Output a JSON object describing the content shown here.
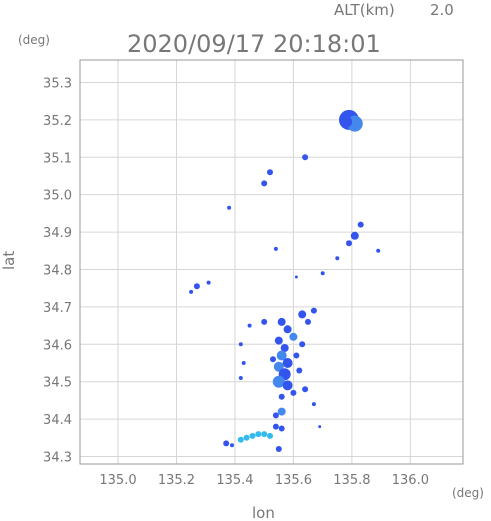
{
  "header": {
    "alt_label": "ALT(km)",
    "alt_value": "2.0",
    "timestamp": "2020/09/17 20:18:01"
  },
  "chart_data": {
    "type": "scatter",
    "xlabel": "lon",
    "ylabel": "lat",
    "x_unit": "(deg)",
    "y_unit": "(deg)",
    "xlim": [
      134.87,
      136.18
    ],
    "ylim": [
      34.28,
      35.36
    ],
    "x_ticks": [
      "135.0",
      "135.2",
      "135.4",
      "135.6",
      "135.8",
      "136.0"
    ],
    "y_ticks": [
      "34.3",
      "34.4",
      "34.5",
      "34.6",
      "34.7",
      "34.8",
      "34.9",
      "35.0",
      "35.1",
      "35.2",
      "35.3"
    ],
    "grid": true,
    "colors": {
      "blue": "#3355ee",
      "mid": "#4488ee",
      "cyan": "#33bbee"
    },
    "points": [
      {
        "x": 135.79,
        "y": 35.2,
        "c": "blue",
        "s": 10
      },
      {
        "x": 135.81,
        "y": 35.19,
        "c": "mid",
        "s": 8
      },
      {
        "x": 135.78,
        "y": 35.195,
        "c": "blue",
        "s": 6
      },
      {
        "x": 135.64,
        "y": 35.1,
        "c": "blue",
        "s": 3
      },
      {
        "x": 135.52,
        "y": 35.06,
        "c": "blue",
        "s": 3
      },
      {
        "x": 135.5,
        "y": 35.03,
        "c": "blue",
        "s": 3
      },
      {
        "x": 135.38,
        "y": 34.965,
        "c": "blue",
        "s": 2
      },
      {
        "x": 135.83,
        "y": 34.92,
        "c": "blue",
        "s": 3
      },
      {
        "x": 135.81,
        "y": 34.89,
        "c": "blue",
        "s": 4
      },
      {
        "x": 135.79,
        "y": 34.87,
        "c": "blue",
        "s": 3
      },
      {
        "x": 135.75,
        "y": 34.83,
        "c": "blue",
        "s": 2
      },
      {
        "x": 135.89,
        "y": 34.85,
        "c": "blue",
        "s": 2
      },
      {
        "x": 135.54,
        "y": 34.855,
        "c": "blue",
        "s": 2
      },
      {
        "x": 135.7,
        "y": 34.79,
        "c": "blue",
        "s": 2
      },
      {
        "x": 135.61,
        "y": 34.78,
        "c": "blue",
        "s": 1.5
      },
      {
        "x": 135.27,
        "y": 34.755,
        "c": "blue",
        "s": 3
      },
      {
        "x": 135.25,
        "y": 34.74,
        "c": "blue",
        "s": 2
      },
      {
        "x": 135.31,
        "y": 34.765,
        "c": "blue",
        "s": 2
      },
      {
        "x": 135.56,
        "y": 34.66,
        "c": "blue",
        "s": 4
      },
      {
        "x": 135.58,
        "y": 34.64,
        "c": "blue",
        "s": 4
      },
      {
        "x": 135.6,
        "y": 34.62,
        "c": "mid",
        "s": 4
      },
      {
        "x": 135.55,
        "y": 34.61,
        "c": "blue",
        "s": 4
      },
      {
        "x": 135.63,
        "y": 34.68,
        "c": "blue",
        "s": 4
      },
      {
        "x": 135.65,
        "y": 34.66,
        "c": "blue",
        "s": 3
      },
      {
        "x": 135.5,
        "y": 34.66,
        "c": "blue",
        "s": 3
      },
      {
        "x": 135.45,
        "y": 34.65,
        "c": "blue",
        "s": 2
      },
      {
        "x": 135.67,
        "y": 34.69,
        "c": "blue",
        "s": 3
      },
      {
        "x": 135.57,
        "y": 34.59,
        "c": "blue",
        "s": 4
      },
      {
        "x": 135.56,
        "y": 34.57,
        "c": "mid",
        "s": 5
      },
      {
        "x": 135.58,
        "y": 34.55,
        "c": "blue",
        "s": 5
      },
      {
        "x": 135.55,
        "y": 34.54,
        "c": "mid",
        "s": 5
      },
      {
        "x": 135.57,
        "y": 34.52,
        "c": "blue",
        "s": 6
      },
      {
        "x": 135.55,
        "y": 34.5,
        "c": "mid",
        "s": 6
      },
      {
        "x": 135.58,
        "y": 34.49,
        "c": "blue",
        "s": 5
      },
      {
        "x": 135.53,
        "y": 34.56,
        "c": "blue",
        "s": 3
      },
      {
        "x": 135.61,
        "y": 34.57,
        "c": "blue",
        "s": 3
      },
      {
        "x": 135.62,
        "y": 34.53,
        "c": "blue",
        "s": 3
      },
      {
        "x": 135.63,
        "y": 34.6,
        "c": "blue",
        "s": 3
      },
      {
        "x": 135.42,
        "y": 34.6,
        "c": "blue",
        "s": 2
      },
      {
        "x": 135.43,
        "y": 34.55,
        "c": "blue",
        "s": 2
      },
      {
        "x": 135.42,
        "y": 34.51,
        "c": "blue",
        "s": 2
      },
      {
        "x": 135.6,
        "y": 34.47,
        "c": "blue",
        "s": 3
      },
      {
        "x": 135.64,
        "y": 34.48,
        "c": "blue",
        "s": 3
      },
      {
        "x": 135.56,
        "y": 34.46,
        "c": "blue",
        "s": 3
      },
      {
        "x": 135.67,
        "y": 34.44,
        "c": "blue",
        "s": 2
      },
      {
        "x": 135.56,
        "y": 34.42,
        "c": "mid",
        "s": 4
      },
      {
        "x": 135.54,
        "y": 34.41,
        "c": "blue",
        "s": 3
      },
      {
        "x": 135.54,
        "y": 34.38,
        "c": "blue",
        "s": 3
      },
      {
        "x": 135.56,
        "y": 34.375,
        "c": "blue",
        "s": 3
      },
      {
        "x": 135.69,
        "y": 34.38,
        "c": "blue",
        "s": 1.5
      },
      {
        "x": 135.44,
        "y": 34.35,
        "c": "cyan",
        "s": 3
      },
      {
        "x": 135.46,
        "y": 34.355,
        "c": "cyan",
        "s": 3
      },
      {
        "x": 135.48,
        "y": 34.36,
        "c": "cyan",
        "s": 3
      },
      {
        "x": 135.5,
        "y": 34.36,
        "c": "cyan",
        "s": 3
      },
      {
        "x": 135.52,
        "y": 34.355,
        "c": "cyan",
        "s": 3
      },
      {
        "x": 135.42,
        "y": 34.345,
        "c": "cyan",
        "s": 3
      },
      {
        "x": 135.37,
        "y": 34.335,
        "c": "blue",
        "s": 3
      },
      {
        "x": 135.39,
        "y": 34.33,
        "c": "blue",
        "s": 2
      },
      {
        "x": 135.55,
        "y": 34.32,
        "c": "blue",
        "s": 3
      }
    ]
  }
}
